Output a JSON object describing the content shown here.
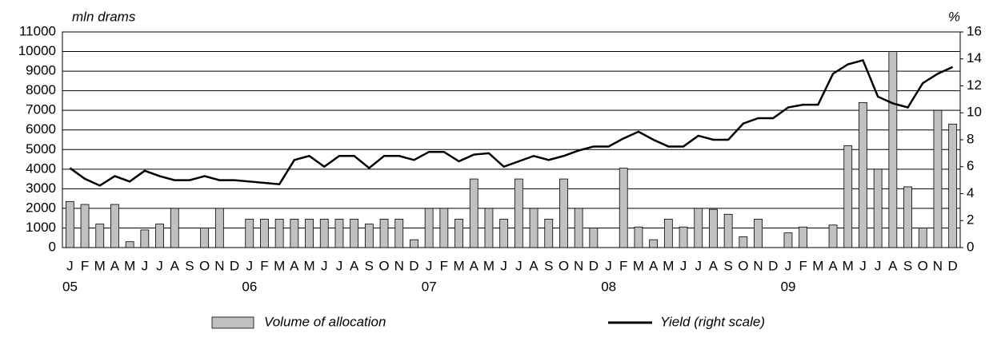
{
  "chart_data": {
    "type": "bar_line",
    "y_label": "mln drams",
    "y2_label": "%",
    "categories": [
      "J",
      "F",
      "M",
      "A",
      "M",
      "J",
      "J",
      "A",
      "S",
      "O",
      "N",
      "D",
      "J",
      "F",
      "M",
      "A",
      "M",
      "J",
      "J",
      "A",
      "S",
      "O",
      "N",
      "D",
      "J",
      "F",
      "M",
      "A",
      "M",
      "J",
      "J",
      "A",
      "S",
      "O",
      "N",
      "D",
      "J",
      "F",
      "M",
      "A",
      "M",
      "J",
      "J",
      "A",
      "S",
      "O",
      "N",
      "D",
      "J",
      "F",
      "M",
      "A",
      "M",
      "J",
      "J",
      "A",
      "S",
      "O",
      "N",
      "D"
    ],
    "years": [
      "05",
      "06",
      "07",
      "08",
      "09"
    ],
    "series": [
      {
        "name": "Volume of allocation",
        "color": "#c0c0c0",
        "values": [
          2350,
          2200,
          1200,
          2200,
          300,
          900,
          1200,
          2000,
          0,
          1000,
          2000,
          0,
          1450,
          1450,
          1450,
          1450,
          1450,
          1450,
          1450,
          1450,
          1200,
          1450,
          1450,
          400,
          2000,
          2000,
          1450,
          3500,
          2000,
          1450,
          3500,
          2000,
          1450,
          3500,
          2000,
          1000,
          0,
          4050,
          1050,
          400,
          1450,
          1050,
          2000,
          1950,
          1700,
          550,
          1450,
          0,
          750,
          1050,
          0,
          1150,
          5200,
          7400,
          4000,
          10000,
          3100,
          1000,
          7000,
          6300
        ]
      },
      {
        "name": "Yield (right scale)",
        "color": "#000000",
        "axis": "y2",
        "values": [
          5.9,
          5.1,
          4.6,
          5.3,
          4.9,
          5.7,
          5.3,
          5.0,
          5.0,
          5.3,
          5.0,
          5.0,
          4.9,
          4.8,
          4.7,
          6.5,
          6.8,
          6.0,
          6.8,
          6.8,
          5.9,
          6.8,
          6.8,
          6.5,
          7.1,
          7.1,
          6.4,
          6.9,
          7.0,
          6.0,
          6.4,
          6.8,
          6.5,
          6.8,
          7.2,
          7.5,
          7.5,
          8.1,
          8.6,
          8.0,
          7.5,
          7.5,
          8.3,
          8.0,
          8.0,
          9.2,
          9.6,
          9.6,
          10.4,
          10.6,
          10.6,
          12.9,
          13.6,
          13.9,
          11.2,
          10.7,
          10.4,
          12.2,
          12.9,
          13.4
        ]
      }
    ],
    "ylim": [
      0,
      11000
    ],
    "yticks": [
      0,
      1000,
      2000,
      3000,
      4000,
      5000,
      6000,
      7000,
      8000,
      9000,
      10000,
      11000
    ],
    "y2lim": [
      0,
      16
    ],
    "y2ticks": [
      0,
      2,
      4,
      6,
      8,
      10,
      12,
      14,
      16
    ],
    "grid": true
  }
}
